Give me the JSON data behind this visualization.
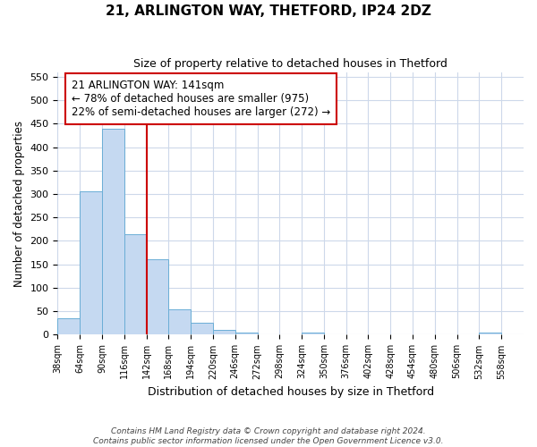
{
  "title1": "21, ARLINGTON WAY, THETFORD, IP24 2DZ",
  "title2": "Size of property relative to detached houses in Thetford",
  "xlabel": "Distribution of detached houses by size in Thetford",
  "ylabel": "Number of detached properties",
  "bin_edges": [
    38,
    64,
    90,
    116,
    142,
    168,
    194,
    220,
    246,
    272,
    298,
    324,
    350,
    376,
    402,
    428,
    454,
    480,
    506,
    532,
    558,
    584
  ],
  "counts": [
    35,
    305,
    440,
    215,
    160,
    55,
    25,
    10,
    5,
    0,
    0,
    5,
    0,
    0,
    0,
    0,
    0,
    0,
    0,
    5,
    0
  ],
  "bar_color": "#c5d9f1",
  "bar_edge_color": "#6baed6",
  "property_line_x": 142,
  "ylim": [
    0,
    560
  ],
  "yticks": [
    0,
    50,
    100,
    150,
    200,
    250,
    300,
    350,
    400,
    450,
    500,
    550
  ],
  "tick_labels": [
    "38sqm",
    "64sqm",
    "90sqm",
    "116sqm",
    "142sqm",
    "168sqm",
    "194sqm",
    "220sqm",
    "246sqm",
    "272sqm",
    "298sqm",
    "324sqm",
    "350sqm",
    "376sqm",
    "402sqm",
    "428sqm",
    "454sqm",
    "480sqm",
    "506sqm",
    "532sqm",
    "558sqm"
  ],
  "annotation_title": "21 ARLINGTON WAY: 141sqm",
  "annotation_line1": "← 78% of detached houses are smaller (975)",
  "annotation_line2": "22% of semi-detached houses are larger (272) →",
  "annotation_box_color": "#ffffff",
  "annotation_box_edge": "#cc0000",
  "property_line_color": "#cc0000",
  "footer1": "Contains HM Land Registry data © Crown copyright and database right 2024.",
  "footer2": "Contains public sector information licensed under the Open Government Licence v3.0.",
  "bg_color": "#ffffff",
  "grid_color": "#cdd8ea"
}
